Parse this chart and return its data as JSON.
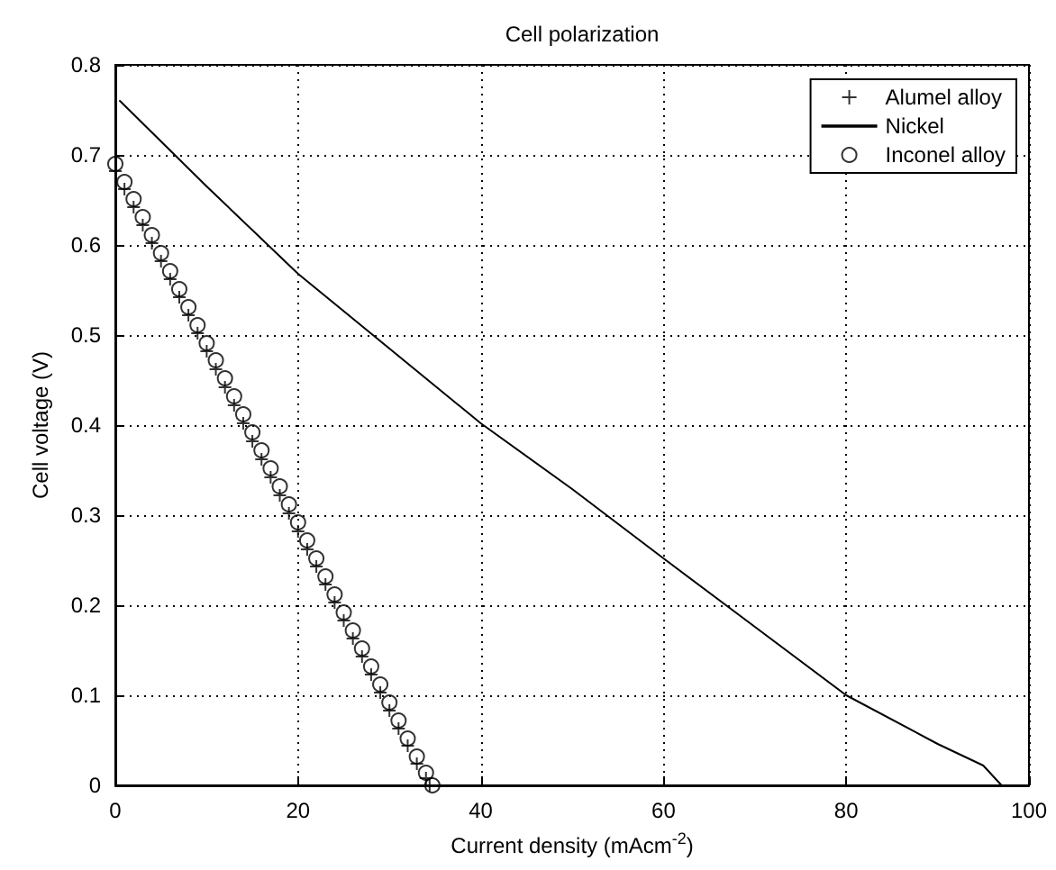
{
  "chart_data": {
    "type": "line",
    "title": "Cell polarization",
    "xlabel": "Current density (mAcm$^{-2}$)",
    "ylabel": "Cell voltage (V)",
    "xlim": [
      0,
      100
    ],
    "xticks": [
      0,
      20,
      40,
      60,
      80,
      100
    ],
    "ylim": [
      0,
      0.8
    ],
    "yticks": [
      0,
      0.1,
      0.2,
      0.3,
      0.4,
      0.5,
      0.6,
      0.7,
      0.8
    ],
    "grid": true,
    "legend": "top right",
    "series": [
      {
        "name": "Alumel alloy",
        "color": "#000000",
        "type": "scatter",
        "marker": "cross",
        "x": [
          0,
          1,
          2,
          3,
          4,
          5,
          6,
          7,
          8,
          9,
          10,
          11,
          12,
          13,
          14,
          15,
          16,
          17,
          18,
          19,
          20,
          21,
          22,
          23,
          24,
          25,
          26,
          27,
          28,
          29,
          30,
          31,
          32,
          33,
          34,
          34.4
        ],
        "values": [
          0.682,
          0.662,
          0.642,
          0.622,
          0.602,
          0.582,
          0.562,
          0.542,
          0.522,
          0.502,
          0.482,
          0.462,
          0.442,
          0.422,
          0.402,
          0.382,
          0.362,
          0.342,
          0.322,
          0.302,
          0.282,
          0.262,
          0.243,
          0.223,
          0.203,
          0.183,
          0.163,
          0.143,
          0.123,
          0.103,
          0.083,
          0.063,
          0.044,
          0.024,
          0.008,
          0.0
        ]
      },
      {
        "name": "Nickel",
        "color": "#000000",
        "marker": "none",
        "line_style": "solid",
        "x": [
          0.5,
          4,
          10,
          20,
          30,
          40,
          50,
          60,
          70,
          80,
          90,
          95,
          97
        ],
        "values": [
          0.76,
          0.725,
          0.665,
          0.568,
          0.485,
          0.402,
          0.329,
          0.252,
          0.176,
          0.1,
          0.046,
          0.022,
          0.0
        ]
      },
      {
        "name": "Inconel alloy",
        "color": "#000000",
        "type": "scatter",
        "marker": "circle",
        "x": [
          0,
          1,
          2,
          3,
          4,
          5,
          6,
          7,
          8,
          9,
          10,
          11,
          12,
          13,
          14,
          15,
          16,
          17,
          18,
          19,
          20,
          21,
          22,
          23,
          24,
          25,
          26,
          27,
          28,
          29,
          30,
          31,
          32,
          33,
          34,
          34.7
        ],
        "values": [
          0.69,
          0.67,
          0.651,
          0.631,
          0.611,
          0.591,
          0.571,
          0.551,
          0.531,
          0.511,
          0.491,
          0.472,
          0.452,
          0.432,
          0.412,
          0.392,
          0.372,
          0.352,
          0.332,
          0.312,
          0.292,
          0.272,
          0.252,
          0.232,
          0.212,
          0.192,
          0.172,
          0.152,
          0.132,
          0.112,
          0.092,
          0.072,
          0.052,
          0.032,
          0.014,
          0.0
        ]
      }
    ]
  }
}
